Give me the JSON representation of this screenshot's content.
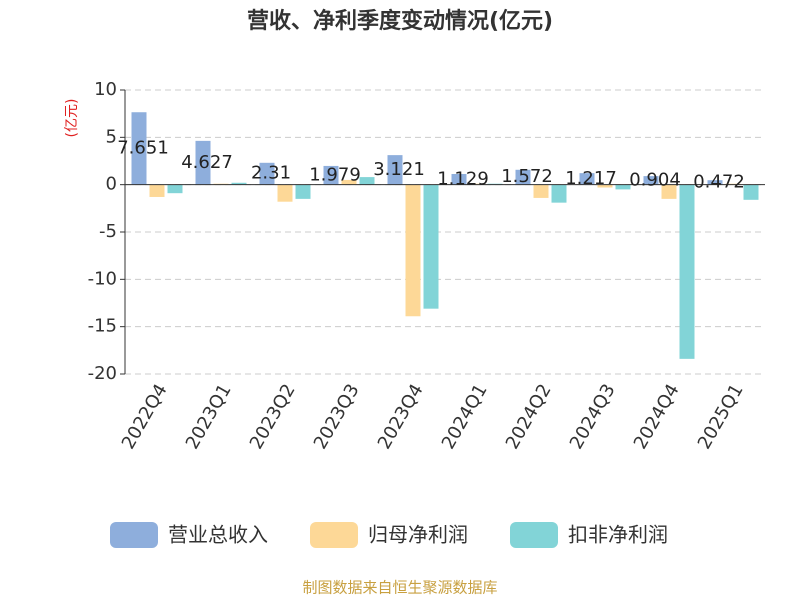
{
  "chart_data": {
    "type": "bar",
    "title": "营收、净利季度变动情况(亿元)",
    "y_label": "(亿元)",
    "source": "制图数据来自恒生聚源数据库",
    "categories": [
      "2022Q4",
      "2023Q1",
      "2023Q2",
      "2023Q3",
      "2023Q4",
      "2024Q1",
      "2024Q2",
      "2024Q3",
      "2024Q4",
      "2025Q1"
    ],
    "series": [
      {
        "name": "营业总收入",
        "color": "#8eaedc",
        "values": [
          7.651,
          4.627,
          2.31,
          1.979,
          3.121,
          1.129,
          1.572,
          1.217,
          0.904,
          0.472
        ],
        "show_labels": true
      },
      {
        "name": "归母净利润",
        "color": "#fdd897",
        "values": [
          -1.3,
          0.1,
          -1.8,
          0.5,
          -13.9,
          0.1,
          -1.4,
          -0.3,
          -1.5,
          0.1
        ]
      },
      {
        "name": "扣非净利润",
        "color": "#82d4d7",
        "values": [
          -0.9,
          0.2,
          -1.5,
          0.8,
          -13.1,
          0.1,
          -1.9,
          -0.5,
          -18.4,
          -1.6
        ]
      }
    ],
    "ylim": [
      -20,
      10
    ],
    "yticks": [
      -20,
      -15,
      -10,
      -5,
      0,
      5,
      10
    ],
    "grid": true,
    "legend": "bottom"
  }
}
